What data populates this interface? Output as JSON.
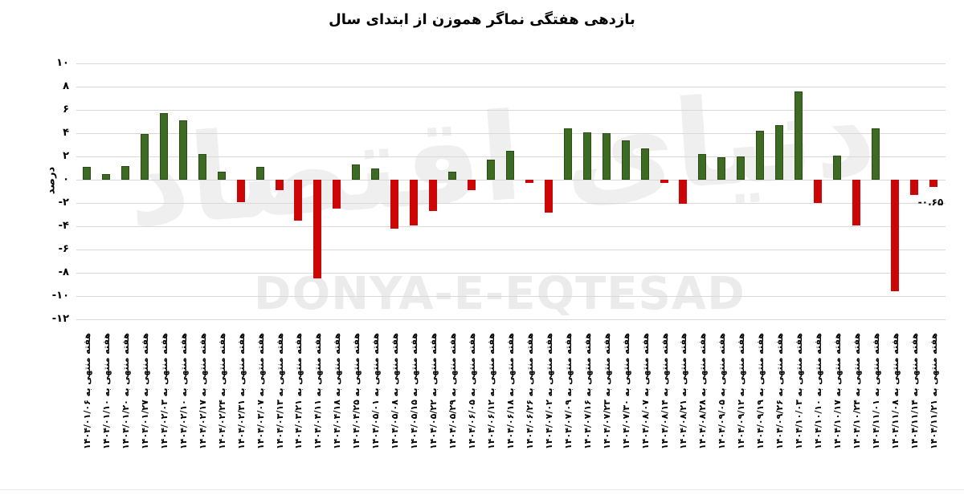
{
  "title": "بازدهی هفتگی نماگر هموزن از ابتدای سال",
  "watermark": {
    "fa": "دنیای اقتصاد",
    "en": "DONYA-E-EQTESAD",
    "color": "#ebebeb"
  },
  "y_axis": {
    "label": "درصد",
    "ticks": [
      "۱۰",
      "۸",
      "۶",
      "۴",
      "۲",
      "۰",
      "-۲",
      "-۴",
      "-۶",
      "-۸",
      "-۱۰",
      "-۱۲"
    ],
    "tick_values": [
      10,
      8,
      6,
      4,
      2,
      0,
      -2,
      -4,
      -6,
      -8,
      -10,
      -12
    ]
  },
  "x_label_prefix": "هفته منتهی به",
  "annotation": {
    "text": "-۰.۶۵",
    "value": -0.65
  },
  "colors": {
    "positive": "#3e6b23",
    "negative": "#cc0606",
    "gridline": "#d8d8d8"
  },
  "chart_data": {
    "type": "bar",
    "title": "بازدهی هفتگی نماگر هموزن از ابتدای سال",
    "xlabel": "",
    "ylabel": "درصد",
    "ylim": [
      -12,
      10
    ],
    "grid": true,
    "legend": false,
    "categories": [
      "۱۴۰۴/۰۱/۰۶",
      "۱۴۰۴/۰۱/۱۰",
      "۱۴۰۴/۰۱/۲۰",
      "۱۴۰۴/۰۱/۲۷",
      "۱۴۰۴/۰۲/۰۳",
      "۱۴۰۴/۰۲/۱۰",
      "۱۴۰۴/۰۲/۱۷",
      "۱۴۰۴/۰۲/۲۴",
      "۱۴۰۴/۰۲/۳۱",
      "۱۴۰۴/۰۳/۰۷",
      "۱۴۰۴/۰۳/۱۳",
      "۱۴۰۴/۰۳/۲۱",
      "۱۴۰۴/۰۴/۱۱",
      "۱۴۰۴/۰۴/۱۸",
      "۱۴۰۴/۰۴/۲۵",
      "۱۴۰۴/۰۵/۰۱",
      "۱۴۰۴/۰۵/۰۸",
      "۱۴۰۴/۰۵/۱۵",
      "۱۴۰۴/۰۵/۲۲",
      "۱۴۰۴/۰۵/۲۹",
      "۱۴۰۴/۰۶/۰۵",
      "۱۴۰۴/۰۶/۱۲",
      "۱۴۰۴/۰۶/۱۸",
      "۱۴۰۴/۰۶/۲۶",
      "۱۴۰۴/۰۷/۰۲",
      "۱۴۰۴/۰۷/۰۹",
      "۱۴۰۴/۰۷/۱۶",
      "۱۴۰۴/۰۷/۲۳",
      "۱۴۰۴/۰۷/۳۰",
      "۱۴۰۴/۰۸/۰۷",
      "۱۴۰۴/۰۸/۱۴",
      "۱۴۰۴/۰۸/۲۱",
      "۱۴۰۴/۰۸/۲۸",
      "۱۴۰۴/۰۹/۰۵",
      "۱۴۰۴/۰۹/۱۲",
      "۱۴۰۴/۰۹/۱۹",
      "۱۴۰۴/۰۹/۲۶",
      "۱۴۰۴/۱۰/۰۳",
      "۱۴۰۴/۱۰/۱۰",
      "۱۴۰۴/۱۰/۱۷",
      "۱۴۰۴/۱۰/۲۴",
      "۱۴۰۴/۱۱/۰۱",
      "۱۴۰۴/۱۱/۰۸",
      "۱۴۰۴/۱۱/۱۴",
      "۱۴۰۴/۱۱/۲۱"
    ],
    "values": [
      1.1,
      0.5,
      1.2,
      3.9,
      5.7,
      5.1,
      2.2,
      0.7,
      -1.9,
      1.1,
      -0.9,
      -3.5,
      -8.5,
      -2.5,
      1.3,
      1.0,
      -4.2,
      -3.9,
      -2.7,
      0.7,
      -0.9,
      1.7,
      2.5,
      -0.3,
      -2.8,
      4.4,
      4.1,
      4.0,
      3.4,
      2.7,
      -0.3,
      -2.1,
      2.2,
      1.9,
      2.0,
      4.2,
      4.7,
      7.6,
      -2.0,
      2.1,
      -3.9,
      4.4,
      -9.6,
      -1.3,
      -0.65
    ],
    "last_value_label": "-۰.۶۵"
  }
}
